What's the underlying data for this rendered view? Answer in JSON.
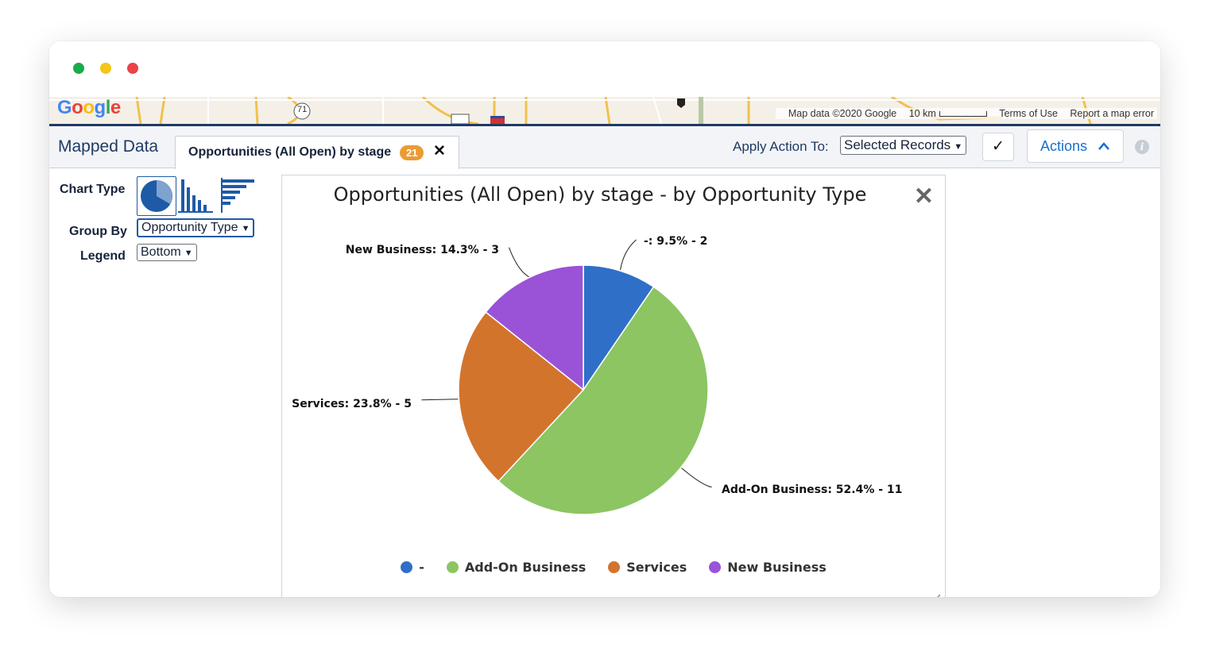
{
  "window": {
    "traffic_lights": [
      {
        "name": "green",
        "color": "#1aab4b"
      },
      {
        "name": "yellow",
        "color": "#f5c518"
      },
      {
        "name": "red",
        "color": "#e8434a"
      }
    ]
  },
  "map": {
    "logo": "Google",
    "road_label": "71",
    "attribution": [
      "Map data ©2020 Google",
      "10 km",
      "Terms of Use",
      "Report a map error"
    ]
  },
  "toolbar": {
    "title": "Mapped Data",
    "tab": {
      "label": "Opportunities (All Open) by stage",
      "count": "21",
      "close": "✕"
    },
    "apply_label": "Apply Action To:",
    "apply_select": "Selected Records",
    "check": "✓",
    "actions_label": "Actions",
    "info": "i"
  },
  "controls": {
    "chart_type_label": "Chart Type",
    "chart_type_options": [
      "pie-icon",
      "column-icon",
      "bar-icon"
    ],
    "chart_type_selected": "pie",
    "group_by_label": "Group By",
    "group_by_value": "Opportunity Type",
    "legend_label": "Legend",
    "legend_value": "Bottom"
  },
  "colors": {
    "brand_navy": "#1f3b63",
    "link_blue": "#1a6fd0",
    "badge_orange": "#eb9b33"
  },
  "chart_data": {
    "type": "pie",
    "title": "Opportunities (All Open) by stage - by Opportunity Type",
    "legend_position": "bottom",
    "slices": [
      {
        "name": "-",
        "value": 2,
        "percent": 9.5,
        "color": "#2f6fc8",
        "label": "-: 9.5% - 2"
      },
      {
        "name": "Add-On Business",
        "value": 11,
        "percent": 52.4,
        "color": "#8cc562",
        "label": "Add-On Business: 52.4% - 11"
      },
      {
        "name": "Services",
        "value": 5,
        "percent": 23.8,
        "color": "#d3742d",
        "label": "Services: 23.8% - 5"
      },
      {
        "name": "New Business",
        "value": 3,
        "percent": 14.3,
        "color": "#9a52d6",
        "label": "New Business: 14.3% - 3"
      }
    ]
  }
}
